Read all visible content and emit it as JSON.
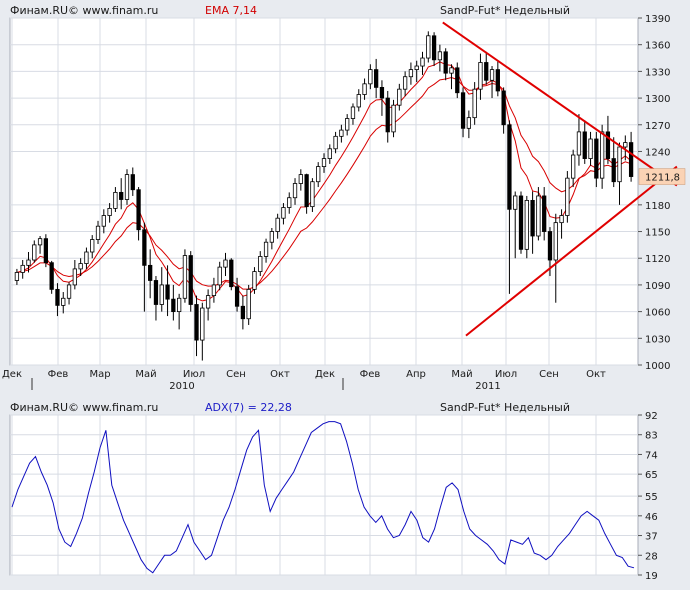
{
  "header": {
    "source": "Финам.RU© www.finam.ru",
    "indicator": "EMA 7,14",
    "instrument": "SandP-Fut* Недельный"
  },
  "adx_header": {
    "source": "Финам.RU© www.finam.ru",
    "indicator": "ADX(7) = 22,28",
    "instrument": "SandP-Fut* Недельный"
  },
  "colors": {
    "background": "#e8ebf0",
    "plot": "#ffffff",
    "grid": "#d8dce4",
    "candle": "#000000",
    "ema": "#d80000",
    "trend": "#e00000",
    "adx": "#1010c0",
    "price_tag": "#fbd3b5"
  },
  "chart_data": [
    {
      "type": "candlestick",
      "title": "SandP-Fut* Недельный",
      "indicator": "EMA 7,14",
      "ylim": [
        1000,
        1390
      ],
      "y_ticks": [
        1000,
        1030,
        1060,
        1090,
        1120,
        1150,
        1180,
        1211.8,
        1240,
        1270,
        1300,
        1330,
        1360,
        1390
      ],
      "y_tick_labels": [
        "1000",
        "1030",
        "1060",
        "1090",
        "1120",
        "1150",
        "1180",
        "1211,8",
        "1240",
        "1270",
        "1300",
        "1330",
        "1360",
        "1390"
      ],
      "last_price": 1211.8,
      "last_price_label": "1211,8",
      "x_month_labels": [
        "Дек",
        "Фев",
        "Мар",
        "Май",
        "Июл",
        "Сен",
        "Окт",
        "Дек",
        "Фев",
        "Апр",
        "Май",
        "Июл",
        "Сен",
        "Окт"
      ],
      "x_year_labels": [
        "2010",
        "2011"
      ],
      "weeks": 107,
      "ohlc": [
        [
          1095,
          1108,
          1090,
          1104
        ],
        [
          1104,
          1118,
          1097,
          1112
        ],
        [
          1112,
          1127,
          1104,
          1118
        ],
        [
          1118,
          1140,
          1115,
          1135
        ],
        [
          1135,
          1145,
          1125,
          1142
        ],
        [
          1142,
          1147,
          1110,
          1115
        ],
        [
          1115,
          1117,
          1080,
          1085
        ],
        [
          1085,
          1092,
          1055,
          1067
        ],
        [
          1067,
          1082,
          1058,
          1075
        ],
        [
          1075,
          1093,
          1068,
          1090
        ],
        [
          1090,
          1118,
          1085,
          1108
        ],
        [
          1108,
          1120,
          1100,
          1114
        ],
        [
          1114,
          1132,
          1108,
          1127
        ],
        [
          1127,
          1146,
          1120,
          1141
        ],
        [
          1141,
          1162,
          1136,
          1156
        ],
        [
          1156,
          1175,
          1148,
          1168
        ],
        [
          1168,
          1182,
          1160,
          1176
        ],
        [
          1176,
          1200,
          1172,
          1194
        ],
        [
          1194,
          1210,
          1175,
          1186
        ],
        [
          1186,
          1220,
          1180,
          1214
        ],
        [
          1214,
          1222,
          1190,
          1197
        ],
        [
          1197,
          1200,
          1140,
          1152
        ],
        [
          1152,
          1160,
          1060,
          1112
        ],
        [
          1112,
          1130,
          1075,
          1095
        ],
        [
          1095,
          1100,
          1050,
          1068
        ],
        [
          1068,
          1110,
          1060,
          1090
        ],
        [
          1090,
          1112,
          1055,
          1074
        ],
        [
          1074,
          1090,
          1050,
          1060
        ],
        [
          1060,
          1080,
          1040,
          1075
        ],
        [
          1075,
          1130,
          1070,
          1123
        ],
        [
          1123,
          1128,
          1060,
          1068
        ],
        [
          1068,
          1078,
          1010,
          1028
        ],
        [
          1028,
          1070,
          1005,
          1064
        ],
        [
          1064,
          1085,
          1050,
          1078
        ],
        [
          1078,
          1098,
          1070,
          1090
        ],
        [
          1090,
          1116,
          1084,
          1110
        ],
        [
          1110,
          1126,
          1100,
          1118
        ],
        [
          1118,
          1120,
          1084,
          1088
        ],
        [
          1088,
          1098,
          1060,
          1066
        ],
        [
          1066,
          1078,
          1040,
          1052
        ],
        [
          1052,
          1090,
          1045,
          1085
        ],
        [
          1085,
          1110,
          1080,
          1105
        ],
        [
          1105,
          1128,
          1100,
          1122
        ],
        [
          1122,
          1142,
          1115,
          1138
        ],
        [
          1138,
          1154,
          1130,
          1150
        ],
        [
          1150,
          1170,
          1142,
          1165
        ],
        [
          1165,
          1182,
          1158,
          1177
        ],
        [
          1177,
          1194,
          1170,
          1188
        ],
        [
          1188,
          1210,
          1180,
          1204
        ],
        [
          1204,
          1220,
          1196,
          1214
        ],
        [
          1214,
          1215,
          1170,
          1178
        ],
        [
          1178,
          1210,
          1172,
          1206
        ],
        [
          1206,
          1228,
          1200,
          1223
        ],
        [
          1223,
          1238,
          1216,
          1232
        ],
        [
          1232,
          1248,
          1226,
          1243
        ],
        [
          1243,
          1262,
          1238,
          1257
        ],
        [
          1257,
          1270,
          1250,
          1264
        ],
        [
          1264,
          1282,
          1258,
          1277
        ],
        [
          1277,
          1294,
          1270,
          1290
        ],
        [
          1290,
          1310,
          1285,
          1304
        ],
        [
          1304,
          1322,
          1298,
          1316
        ],
        [
          1316,
          1338,
          1310,
          1332
        ],
        [
          1332,
          1344,
          1300,
          1312
        ],
        [
          1312,
          1320,
          1280,
          1300
        ],
        [
          1300,
          1308,
          1250,
          1262
        ],
        [
          1262,
          1298,
          1256,
          1292
        ],
        [
          1292,
          1316,
          1286,
          1310
        ],
        [
          1310,
          1330,
          1302,
          1324
        ],
        [
          1324,
          1340,
          1315,
          1332
        ],
        [
          1332,
          1342,
          1318,
          1336
        ],
        [
          1336,
          1352,
          1326,
          1345
        ],
        [
          1345,
          1375,
          1340,
          1370
        ],
        [
          1370,
          1374,
          1336,
          1343
        ],
        [
          1343,
          1360,
          1330,
          1352
        ],
        [
          1352,
          1356,
          1320,
          1328
        ],
        [
          1328,
          1338,
          1310,
          1334
        ],
        [
          1334,
          1340,
          1300,
          1306
        ],
        [
          1306,
          1312,
          1256,
          1266
        ],
        [
          1266,
          1286,
          1255,
          1278
        ],
        [
          1278,
          1318,
          1270,
          1310
        ],
        [
          1310,
          1350,
          1298,
          1340
        ],
        [
          1340,
          1352,
          1315,
          1320
        ],
        [
          1320,
          1336,
          1300,
          1332
        ],
        [
          1332,
          1342,
          1302,
          1308
        ],
        [
          1308,
          1312,
          1260,
          1270
        ],
        [
          1270,
          1275,
          1080,
          1175
        ],
        [
          1175,
          1195,
          1120,
          1190
        ],
        [
          1190,
          1195,
          1125,
          1130
        ],
        [
          1130,
          1190,
          1120,
          1185
        ],
        [
          1185,
          1195,
          1125,
          1145
        ],
        [
          1145,
          1200,
          1140,
          1190
        ],
        [
          1190,
          1200,
          1140,
          1150
        ],
        [
          1150,
          1155,
          1100,
          1118
        ],
        [
          1118,
          1170,
          1070,
          1160
        ],
        [
          1160,
          1175,
          1142,
          1168
        ],
        [
          1168,
          1218,
          1160,
          1210
        ],
        [
          1210,
          1242,
          1200,
          1236
        ],
        [
          1236,
          1282,
          1224,
          1262
        ],
        [
          1262,
          1275,
          1226,
          1232
        ],
        [
          1232,
          1262,
          1224,
          1254
        ],
        [
          1254,
          1262,
          1200,
          1210
        ],
        [
          1210,
          1270,
          1198,
          1262
        ],
        [
          1262,
          1280,
          1226,
          1232
        ],
        [
          1232,
          1256,
          1200,
          1206
        ],
        [
          1206,
          1250,
          1180,
          1245
        ],
        [
          1245,
          1258,
          1230,
          1250
        ],
        [
          1250,
          1262,
          1206,
          1211.8
        ]
      ],
      "trend_lines": [
        {
          "from": [
            73.5,
            1385
          ],
          "to": [
            107,
            1233
          ]
        },
        {
          "from": [
            77.5,
            1033
          ],
          "to": [
            107,
            1187
          ]
        }
      ]
    },
    {
      "type": "line",
      "title": "ADX(7) = 22,28",
      "series": [
        {
          "name": "ADX(7)",
          "values": [
            50,
            58,
            64,
            70,
            73,
            66,
            60,
            52,
            40,
            34,
            32,
            38,
            45,
            56,
            66,
            77,
            85,
            60,
            52,
            44,
            38,
            32,
            26,
            22,
            20,
            24,
            28,
            28,
            30,
            36,
            42,
            34,
            30,
            26,
            28,
            36,
            44,
            50,
            58,
            67,
            76,
            82,
            85,
            60,
            48,
            54,
            58,
            62,
            66,
            72,
            78,
            84,
            86,
            88,
            89,
            89,
            88,
            80,
            70,
            58,
            50,
            46,
            43,
            46,
            40,
            36,
            37,
            42,
            48,
            44,
            36,
            34,
            40,
            50,
            59,
            61,
            58,
            48,
            40,
            37,
            35,
            33,
            30,
            26,
            24,
            35,
            34,
            33,
            36,
            29,
            28,
            26,
            28,
            32,
            35,
            38,
            42,
            46,
            48,
            46,
            44,
            38,
            33,
            28,
            27,
            23,
            22.28
          ]
        }
      ],
      "ylim": [
        19,
        92
      ],
      "y_ticks": [
        19,
        28,
        37,
        46,
        55,
        65,
        74,
        83,
        92
      ],
      "y_tick_labels": [
        "19",
        "28",
        "37",
        "46",
        "55",
        "65",
        "74",
        "83",
        "92"
      ]
    }
  ]
}
